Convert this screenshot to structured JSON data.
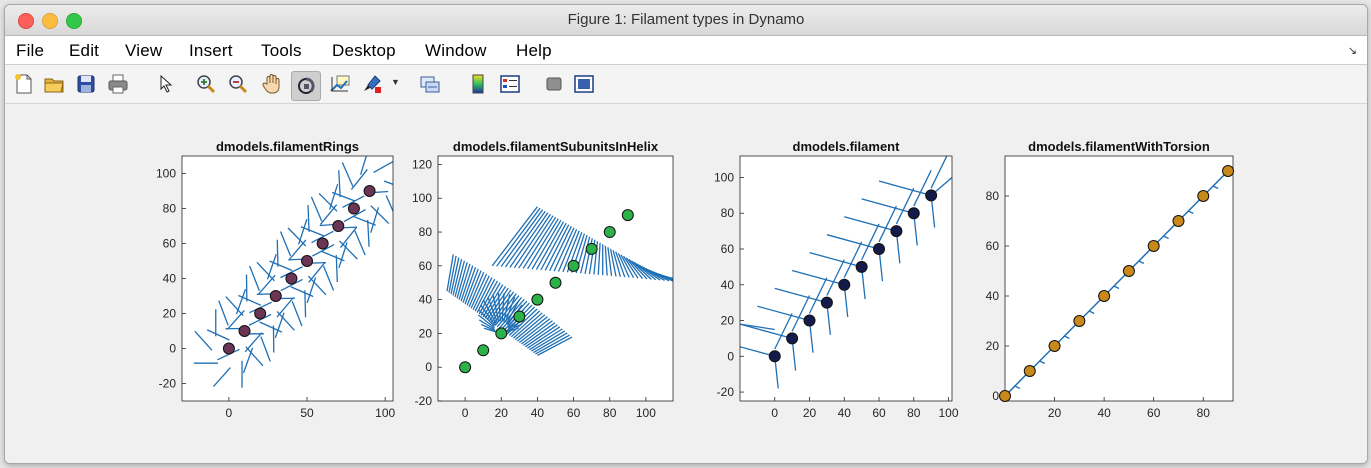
{
  "window": {
    "title": "Figure 1: Filament types in Dynamo"
  },
  "menubar": {
    "items": [
      "File",
      "Edit",
      "View",
      "Insert",
      "Tools",
      "Desktop",
      "Window",
      "Help"
    ],
    "overflow_icon": "chevron-double-down-icon"
  },
  "toolbar": {
    "icons": [
      "new-figure-icon",
      "open-file-icon",
      "save-icon",
      "print-icon",
      "pointer-icon",
      "zoom-in-icon",
      "zoom-out-icon",
      "pan-hand-icon",
      "rotate-3d-icon",
      "data-cursor-icon",
      "brush-icon",
      "brush-dropdown-icon",
      "link-plot-icon",
      "colorbar-icon",
      "legend-icon",
      "hide-plot-tools-icon",
      "show-plot-tools-icon"
    ],
    "pressed": "rotate-3d-icon"
  },
  "chart_data": [
    {
      "type": "scatter",
      "title": "dmodels.filamentRings",
      "x": [
        0,
        10,
        20,
        30,
        40,
        50,
        60,
        70,
        80,
        90
      ],
      "y": [
        0,
        10,
        20,
        30,
        40,
        50,
        60,
        70,
        80,
        90
      ],
      "marker_color": "#6b3556",
      "vector_color": "#1f6fb5",
      "xlim": [
        -30,
        105
      ],
      "ylim": [
        -30,
        110
      ],
      "xticks": [
        0,
        50,
        100
      ],
      "yticks": [
        -20,
        0,
        20,
        40,
        60,
        80,
        100
      ],
      "overlay": "radial ring vectors around each point"
    },
    {
      "type": "scatter",
      "title": "dmodels.filamentSubunitsInHelix",
      "x": [
        0,
        10,
        20,
        30,
        40,
        50,
        60,
        70,
        80,
        90
      ],
      "y": [
        0,
        10,
        20,
        30,
        40,
        50,
        60,
        70,
        80,
        90
      ],
      "marker_color": "#2bb34a",
      "vector_color": "#1f6fb5",
      "xlim": [
        -15,
        115
      ],
      "ylim": [
        -20,
        125
      ],
      "xticks": [
        0,
        20,
        40,
        60,
        80,
        100
      ],
      "yticks": [
        -20,
        0,
        20,
        40,
        60,
        80,
        100,
        120
      ],
      "overlay": "helical fans of vectors"
    },
    {
      "type": "scatter",
      "title": "dmodels.filament",
      "x": [
        0,
        10,
        20,
        30,
        40,
        50,
        60,
        70,
        80,
        90
      ],
      "y": [
        0,
        10,
        20,
        30,
        40,
        50,
        60,
        70,
        80,
        90
      ],
      "marker_color": "#141a4a",
      "vector_color": "#1f6fb5",
      "xlim": [
        -20,
        102
      ],
      "ylim": [
        -25,
        112
      ],
      "xticks": [
        0,
        20,
        40,
        60,
        80,
        100
      ],
      "yticks": [
        -20,
        0,
        20,
        40,
        60,
        80,
        100
      ],
      "overlay": "triad vectors at each point"
    },
    {
      "type": "line",
      "title": "dmodels.filamentWithTorsion",
      "x": [
        0,
        10,
        20,
        30,
        40,
        50,
        60,
        70,
        80,
        90
      ],
      "y": [
        0,
        10,
        20,
        30,
        40,
        50,
        60,
        70,
        80,
        90
      ],
      "marker_color": "#c9891a",
      "vector_color": "#1f6fb5",
      "xlim": [
        0,
        92
      ],
      "ylim": [
        -2,
        96
      ],
      "xticks": [
        20,
        40,
        60,
        80
      ],
      "yticks": [
        0,
        20,
        40,
        60,
        80
      ],
      "overlay": "short tangent vectors along the line"
    }
  ]
}
